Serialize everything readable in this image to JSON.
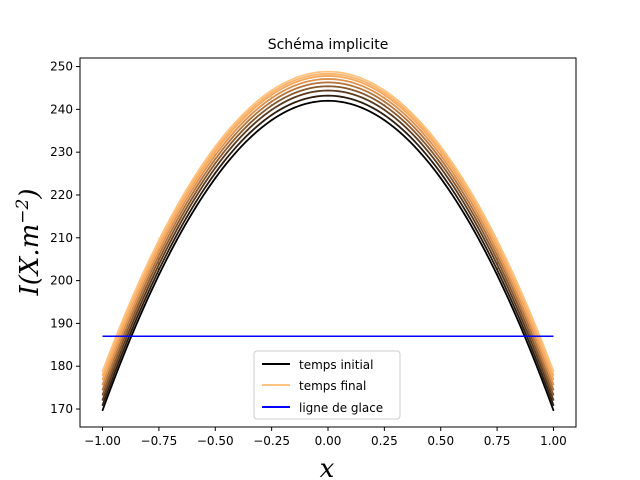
{
  "chart_data": {
    "type": "line",
    "title": "Schéma implicite",
    "xlabel": "x",
    "ylabel_main": "I(X.m",
    "ylabel_sup": "−2",
    "ylabel_close": ")",
    "xlim": [
      -1.1,
      1.1
    ],
    "ylim": [
      165.8,
      252.0
    ],
    "x_ticks": [
      -1.0,
      -0.75,
      -0.5,
      -0.25,
      0.0,
      0.25,
      0.5,
      0.75,
      1.0
    ],
    "x_tick_labels": [
      "−1.00",
      "−0.75",
      "−0.50",
      "−0.25",
      "0.00",
      "0.25",
      "0.50",
      "0.75",
      "1.00"
    ],
    "y_ticks": [
      170,
      180,
      190,
      200,
      210,
      220,
      230,
      240,
      250
    ],
    "y_tick_labels": [
      "170",
      "180",
      "190",
      "200",
      "210",
      "220",
      "230",
      "240",
      "250"
    ],
    "grid": false,
    "legend_position": "lower center",
    "series": [
      {
        "name": "temps initial",
        "color": "#000000",
        "x": [
          -1.0,
          -0.75,
          -0.5,
          -0.25,
          0.0,
          0.25,
          0.5,
          0.75,
          1.0
        ],
        "y": [
          169.7,
          201.5,
          224.0,
          237.5,
          242.0,
          237.5,
          224.0,
          201.5,
          169.7
        ]
      },
      {
        "name": "",
        "color": "#2e1c0e",
        "x": [
          -1.0,
          -0.75,
          -0.5,
          -0.25,
          0.0,
          0.25,
          0.5,
          0.75,
          1.0
        ],
        "y": [
          170.9,
          202.8,
          225.2,
          238.7,
          243.2,
          238.7,
          225.2,
          202.8,
          170.9
        ]
      },
      {
        "name": "",
        "color": "#5b3a1d",
        "x": [
          -1.0,
          -0.75,
          -0.5,
          -0.25,
          0.0,
          0.25,
          0.5,
          0.75,
          1.0
        ],
        "y": [
          172.1,
          204.0,
          226.4,
          239.9,
          244.4,
          239.9,
          226.4,
          204.0,
          172.1
        ]
      },
      {
        "name": "",
        "color": "#87572d",
        "x": [
          -1.0,
          -0.75,
          -0.5,
          -0.25,
          0.0,
          0.25,
          0.5,
          0.75,
          1.0
        ],
        "y": [
          173.3,
          205.1,
          227.5,
          241.0,
          245.4,
          241.0,
          227.5,
          205.1,
          173.3
        ]
      },
      {
        "name": "",
        "color": "#b4743c",
        "x": [
          -1.0,
          -0.75,
          -0.5,
          -0.25,
          0.0,
          0.25,
          0.5,
          0.75,
          1.0
        ],
        "y": [
          174.5,
          206.2,
          228.5,
          241.9,
          246.3,
          241.9,
          228.5,
          206.2,
          174.5
        ]
      },
      {
        "name": "",
        "color": "#dd914c",
        "x": [
          -1.0,
          -0.75,
          -0.5,
          -0.25,
          0.0,
          0.25,
          0.5,
          0.75,
          1.0
        ],
        "y": [
          175.7,
          207.3,
          229.5,
          242.8,
          247.1,
          242.8,
          229.5,
          207.3,
          175.7
        ]
      },
      {
        "name": "",
        "color": "#f5a85c",
        "x": [
          -1.0,
          -0.75,
          -0.5,
          -0.25,
          0.0,
          0.25,
          0.5,
          0.75,
          1.0
        ],
        "y": [
          176.9,
          208.3,
          230.3,
          243.5,
          247.8,
          243.5,
          230.3,
          208.3,
          176.9
        ]
      },
      {
        "name": "",
        "color": "#fab46e",
        "x": [
          -1.0,
          -0.75,
          -0.5,
          -0.25,
          0.0,
          0.25,
          0.5,
          0.75,
          1.0
        ],
        "y": [
          177.9,
          209.1,
          231.0,
          244.0,
          248.3,
          244.0,
          231.0,
          209.1,
          177.9
        ]
      },
      {
        "name": "temps final",
        "color": "#ffc27f",
        "x": [
          -1.0,
          -0.75,
          -0.5,
          -0.25,
          0.0,
          0.25,
          0.5,
          0.75,
          1.0
        ],
        "y": [
          178.8,
          209.8,
          231.5,
          244.5,
          248.8,
          244.5,
          231.5,
          209.8,
          178.8
        ]
      },
      {
        "name": "ligne de glace",
        "color": "#0000ff",
        "x": [
          -1.0,
          1.0
        ],
        "y": [
          187.0,
          187.0
        ]
      }
    ]
  }
}
